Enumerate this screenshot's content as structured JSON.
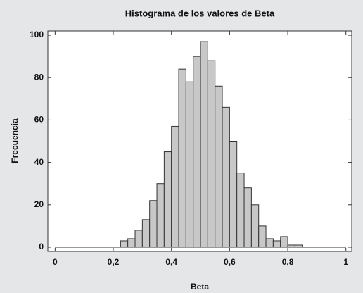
{
  "chart_data": {
    "type": "histogram",
    "title": "Histograma de  los valores de Beta",
    "x_label": "Beta",
    "y_label": "Frecuencia",
    "bins": [
      0.225,
      0.25,
      0.275,
      0.3,
      0.325,
      0.35,
      0.375,
      0.4,
      0.425,
      0.45,
      0.475,
      0.5,
      0.525,
      0.55,
      0.575,
      0.6,
      0.625,
      0.65,
      0.675,
      0.7,
      0.725,
      0.75,
      0.775,
      0.8,
      0.825,
      0.85
    ],
    "values": [
      3,
      4,
      8,
      13,
      22,
      30,
      45,
      57,
      84,
      78,
      90,
      97,
      88,
      76,
      66,
      50,
      35,
      28,
      20,
      10,
      4,
      3,
      5,
      1,
      1
    ],
    "color": "#c8c8c8",
    "xlim": [
      -0.025,
      1.02
    ],
    "ylim": [
      -2,
      102
    ],
    "xticks": [
      0,
      {
        "value": 0.2,
        "label": "0,2"
      },
      {
        "value": 0.4,
        "label": "0,4"
      },
      {
        "value": 0.6,
        "label": "0,6"
      },
      {
        "value": 0.8,
        "label": "0,8"
      },
      1
    ],
    "yticks": [
      0,
      20,
      40,
      60,
      80,
      100
    ]
  }
}
